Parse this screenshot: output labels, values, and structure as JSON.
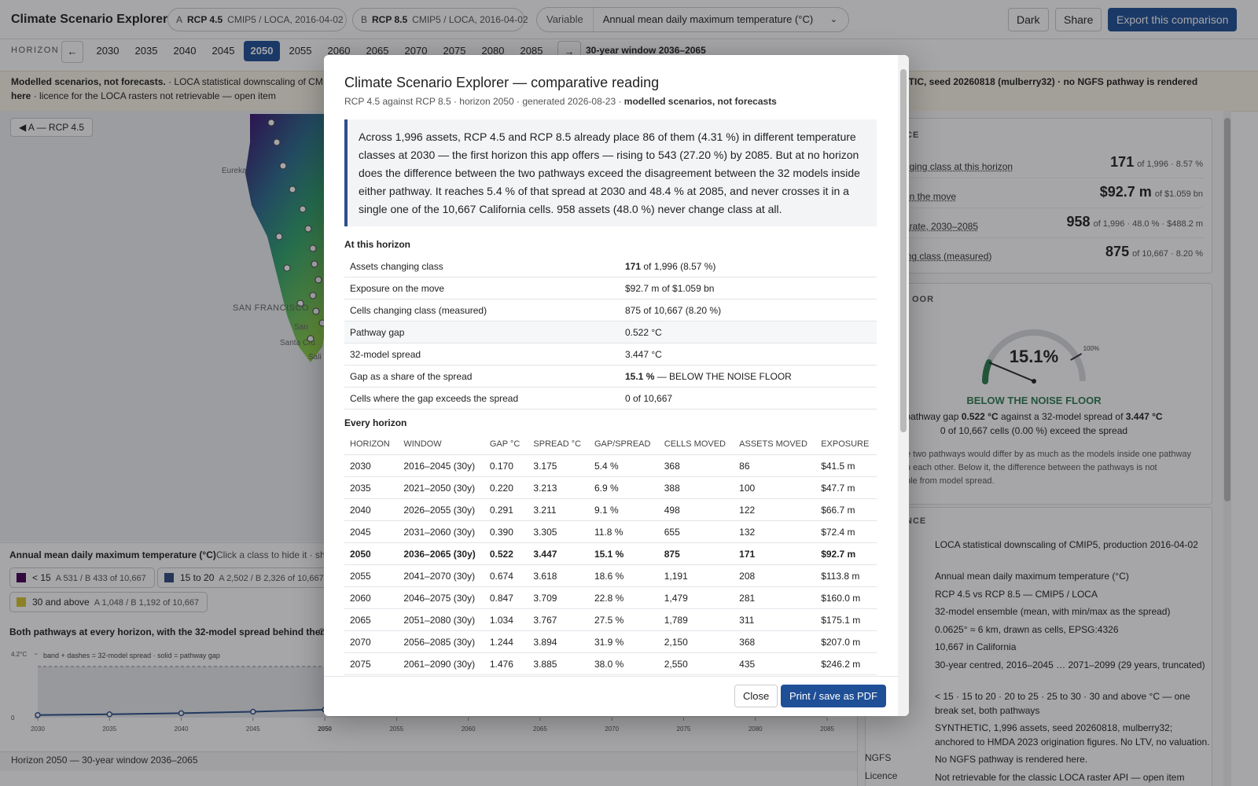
{
  "header": {
    "title": "Climate Scenario Explorer",
    "scenarios": [
      {
        "letter": "A",
        "name": "RCP 4.5",
        "meta": "CMIP5 / LOCA, 2016-04-02"
      },
      {
        "letter": "B",
        "name": "RCP 8.5",
        "meta": "CMIP5 / LOCA, 2016-04-02"
      }
    ],
    "variable_label": "Variable",
    "variable_value": "Annual mean daily maximum temperature (°C)",
    "actions": [
      "Dark",
      "Share",
      "Export this comparison"
    ]
  },
  "horizon_bar": {
    "label": "HORIZON",
    "prev": "←",
    "years": [
      "2030",
      "2035",
      "2040",
      "2045",
      "2050",
      "2055",
      "2060",
      "2065",
      "2070",
      "2075",
      "2080",
      "2085"
    ],
    "selected": 4,
    "next": "→",
    "window": "30-year window 2036–2065"
  },
  "banner": {
    "lead": "Modelled scenarios, not forecasts.",
    "text": "· LOCA statistical downscaling of CMIP5",
    "right_text": "HETIC, seed 20260818 (mulberry32) ·",
    "right_bold": "no NGFS pathway is rendered",
    "line2_bold": "here",
    "line2": "· licence for the LOCA rasters not retrievable — open item"
  },
  "map": {
    "toggle": "◀ A — RCP 4.5",
    "places": [
      "Eureka",
      "SAN FRANCISCO",
      "San",
      "Santa Cru",
      "Sali"
    ]
  },
  "legend": {
    "title": "Annual mean daily maximum temperature (°C)",
    "hint": "Click a class to hide it · shift-cl",
    "classes": [
      {
        "label": "< 15",
        "counts": "A 531 / B 433 of 10,667",
        "color": "#440154"
      },
      {
        "label": "15 to 20",
        "counts": "A 2,502 / B 2,326 of 10,667",
        "color": "#31497e"
      },
      {
        "label": "30 and above",
        "counts": "A 1,048 / B 1,192 of 10,667",
        "color": "#d5c52a"
      }
    ]
  },
  "trend": {
    "title": "Both pathways at every horizon, with the 32-model spread behind them",
    "title_tail": "C",
    "note": "band + dashes = 32-model spread · solid = pathway gap",
    "ylim": [
      0,
      4.2
    ],
    "yticks": [
      0,
      {
        "value": 4.2,
        "label": "4.2°C"
      }
    ],
    "xlim": [
      2030,
      2085
    ],
    "xticks": [
      2030,
      2035,
      2040,
      2045,
      2050,
      2055,
      2060,
      2065,
      2070,
      2075,
      2080,
      2085
    ],
    "series": [
      {
        "name": "pathway gap",
        "color": "#2b4f8a",
        "x": [
          2030,
          2035,
          2040,
          2045,
          2050
        ],
        "values": [
          0.17,
          0.22,
          0.291,
          0.39,
          0.522
        ]
      }
    ]
  },
  "status": "Horizon 2050 — 30-year window 2036–2065",
  "summary_panel": {
    "header": "CE",
    "rows": [
      {
        "label": "nging class at this horizon",
        "value": "171",
        "detail": "of 1,996 · 8.57 %"
      },
      {
        "label": "on the move",
        "value": "$92.7 m",
        "detail": "of $1.059 bn"
      },
      {
        "label": "arate, 2030–2085",
        "value": "958",
        "detail": "of 1,996 · 48.0 % · $488.2 m"
      },
      {
        "label": "ing class (measured)",
        "value": "875",
        "detail": "of 10,667 · 8.20 %"
      }
    ]
  },
  "noise_floor": {
    "header": "OOR",
    "gauge": {
      "value": 15.1,
      "label": "15.1%",
      "range": [
        0,
        120
      ],
      "ticks": [
        {
          "value": 100,
          "label": "100%"
        }
      ]
    },
    "verdict": "BELOW THE NOISE FLOOR",
    "line1": [
      "pathway gap",
      "0.522 °C",
      "against a 32-model spread of",
      "3.447 °C"
    ],
    "line2": "0 of 10,667 cells (0.00 %) exceed the spread",
    "note": [
      "e two pathways would differ by as much as the models inside one pathway",
      "h each other. Below it, the difference between the pathways is not",
      "ble from model spread."
    ]
  },
  "provenance": {
    "header": "NCE",
    "rows": [
      {
        "value": "LOCA statistical downscaling of CMIP5, production 2016-04-02"
      },
      {
        "value": "Annual mean daily maximum temperature (°C)"
      },
      {
        "value": "RCP 4.5 vs RCP 8.5 — CMIP5 / LOCA"
      },
      {
        "value": "32-model ensemble (mean, with min/max as the spread)"
      },
      {
        "value": "0.0625° ≈ 6 km, drawn as cells, EPSG:4326"
      },
      {
        "value": "10,667 in California"
      },
      {
        "value": "30-year centred, 2016–2045 … 2071–2099 (29 years, truncated)"
      },
      {
        "key": "s",
        "value": "< 15 · 15 to 20 · 20 to 25 · 25 to 30 · 30 and above °C — one break set, both pathways"
      },
      {
        "value": "SYNTHETIC, 1,996 assets, seed 20260818, mulberry32; anchored to HMDA 2023 origination figures. No LTV, no valuation."
      },
      {
        "key": "NGFS",
        "value": "No NGFS pathway is rendered here."
      },
      {
        "key": "Licence",
        "value": "Not retrievable for the classic LOCA raster API — open item"
      }
    ]
  },
  "modal": {
    "title": "Climate Scenario Explorer — comparative reading",
    "subtitle": "RCP 4.5 against RCP 8.5 · horizon 2050 · generated 2026-08-23 ·",
    "subtitle_bold": "modelled scenarios, not forecasts",
    "summary": "Across 1,996 assets, RCP 4.5 and RCP 8.5 already place 86 of them (4.31 %) in different temperature classes at 2030 — the first horizon this app offers — rising to 543 (27.20 %) by 2085. But at no horizon does the difference between the two pathways exceed the disagreement between the 32 models inside either pathway. It reaches 5.4 % of that spread at 2030 and 48.4 % at 2085, and never crosses it in a single one of the 10,667 California cells. 958 assets (48.0 %) never change class at all.",
    "at_horizon_title": "At this horizon",
    "at_horizon": [
      {
        "key": "Assets changing class",
        "bold": "171",
        "value": "of 1,996 (8.57 %)"
      },
      {
        "key": "Exposure on the move",
        "value": "$92.7 m of $1.059 bn"
      },
      {
        "key": "Cells changing class (measured)",
        "value": "875 of 10,667 (8.20 %)"
      },
      {
        "key": "Pathway gap",
        "value": "0.522 °C"
      },
      {
        "key": "32-model spread",
        "value": "3.447 °C"
      },
      {
        "key": "Gap as a share of the spread",
        "bold": "15.1 %",
        "value": "— BELOW THE NOISE FLOOR"
      },
      {
        "key": "Cells where the gap exceeds the spread",
        "value": "0 of 10,667"
      }
    ],
    "every_title": "Every horizon",
    "columns": [
      "HORIZON",
      "WINDOW",
      "GAP °C",
      "SPREAD °C",
      "GAP/SPREAD",
      "CELLS MOVED",
      "ASSETS MOVED",
      "EXPOSURE"
    ],
    "rows": [
      [
        "2030",
        "2016–2045 (30y)",
        "0.170",
        "3.175",
        "5.4 %",
        "368",
        "86",
        "$41.5 m"
      ],
      [
        "2035",
        "2021–2050 (30y)",
        "0.220",
        "3.213",
        "6.9 %",
        "388",
        "100",
        "$47.7 m"
      ],
      [
        "2040",
        "2026–2055 (30y)",
        "0.291",
        "3.211",
        "9.1 %",
        "498",
        "122",
        "$66.7 m"
      ],
      [
        "2045",
        "2031–2060 (30y)",
        "0.390",
        "3.305",
        "11.8 %",
        "655",
        "132",
        "$72.4 m"
      ],
      [
        "2050",
        "2036–2065 (30y)",
        "0.522",
        "3.447",
        "15.1 %",
        "875",
        "171",
        "$92.7 m"
      ],
      [
        "2055",
        "2041–2070 (30y)",
        "0.674",
        "3.618",
        "18.6 %",
        "1,191",
        "208",
        "$113.8 m"
      ],
      [
        "2060",
        "2046–2075 (30y)",
        "0.847",
        "3.709",
        "22.8 %",
        "1,479",
        "281",
        "$160.0 m"
      ],
      [
        "2065",
        "2051–2080 (30y)",
        "1.034",
        "3.767",
        "27.5 %",
        "1,789",
        "311",
        "$175.1 m"
      ],
      [
        "2070",
        "2056–2085 (30y)",
        "1.244",
        "3.894",
        "31.9 %",
        "2,150",
        "368",
        "$207.0 m"
      ],
      [
        "2075",
        "2061–2090 (30y)",
        "1.476",
        "3.885",
        "38.0 %",
        "2,550",
        "435",
        "$246.2 m"
      ]
    ],
    "highlight_row": 4,
    "buttons": [
      "Close",
      "Print / save as PDF"
    ]
  }
}
